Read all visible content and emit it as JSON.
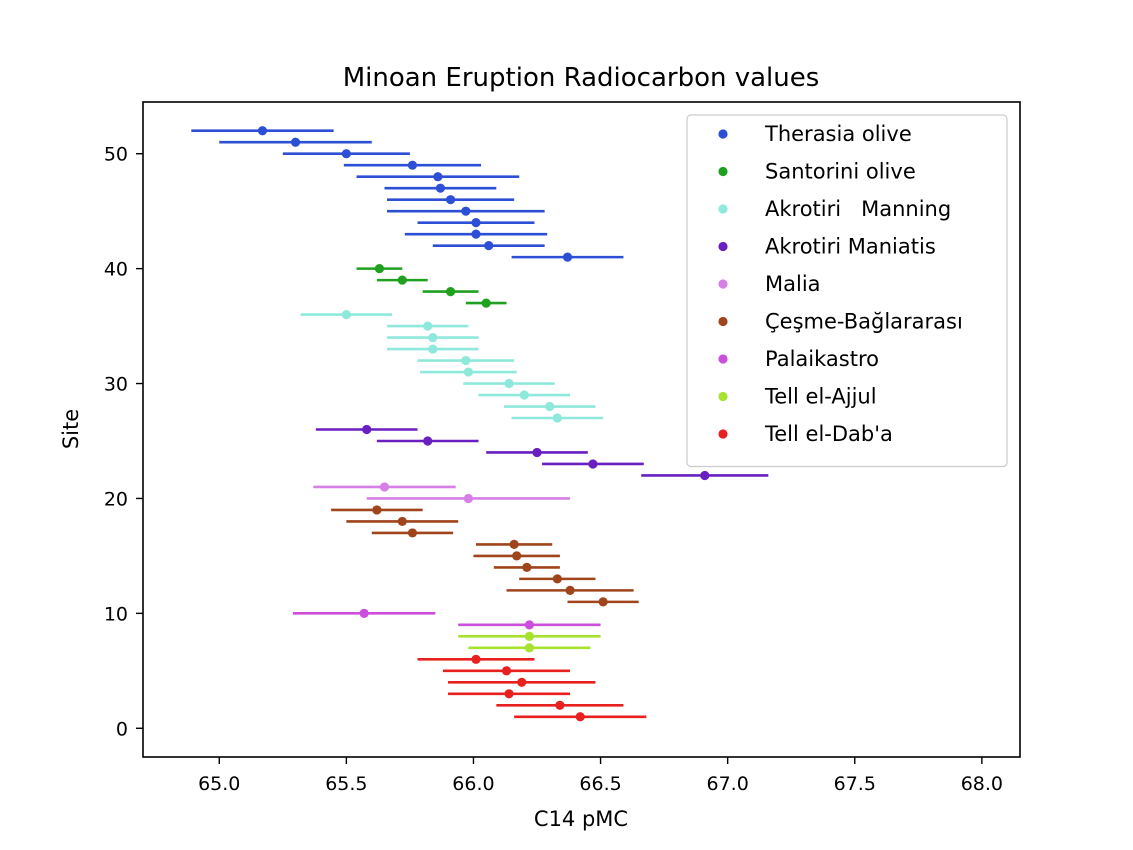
{
  "chart_data": {
    "type": "scatter",
    "title": "Minoan Eruption Radiocarbon values",
    "xlabel": "C14 pMC",
    "ylabel": "Site",
    "xlim": [
      64.7,
      68.15
    ],
    "ylim": [
      -2.5,
      54.5
    ],
    "xticks": [
      65.0,
      65.5,
      66.0,
      66.5,
      67.0,
      67.5,
      68.0
    ],
    "yticks": [
      0,
      10,
      20,
      30,
      40,
      50
    ],
    "xtick_labels": [
      "65.0",
      "65.5",
      "66.0",
      "66.5",
      "67.0",
      "67.5",
      "68.0"
    ],
    "ytick_labels": [
      "0",
      "10",
      "20",
      "30",
      "40",
      "50"
    ],
    "grid": false,
    "legend_position": "top-right",
    "error_bars": "horizontal",
    "series": [
      {
        "name": "Therasia olive",
        "color": "#2d4fd6",
        "points": [
          {
            "x": 65.17,
            "y": 52,
            "err": 0.28
          },
          {
            "x": 65.3,
            "y": 51,
            "err": 0.3
          },
          {
            "x": 65.5,
            "y": 50,
            "err": 0.25
          },
          {
            "x": 65.76,
            "y": 49,
            "err": 0.27
          },
          {
            "x": 65.86,
            "y": 48,
            "err": 0.32
          },
          {
            "x": 65.87,
            "y": 47,
            "err": 0.22
          },
          {
            "x": 65.91,
            "y": 46,
            "err": 0.25
          },
          {
            "x": 65.97,
            "y": 45,
            "err": 0.31
          },
          {
            "x": 66.01,
            "y": 44,
            "err": 0.23
          },
          {
            "x": 66.01,
            "y": 43,
            "err": 0.28
          },
          {
            "x": 66.06,
            "y": 42,
            "err": 0.22
          },
          {
            "x": 66.37,
            "y": 41,
            "err": 0.22
          }
        ]
      },
      {
        "name": "Santorini olive",
        "color": "#1fa01f",
        "points": [
          {
            "x": 65.63,
            "y": 40,
            "err": 0.09
          },
          {
            "x": 65.72,
            "y": 39,
            "err": 0.1
          },
          {
            "x": 65.91,
            "y": 38,
            "err": 0.11
          },
          {
            "x": 66.05,
            "y": 37,
            "err": 0.08
          }
        ]
      },
      {
        "name": "Akrotiri   Manning",
        "color": "#8ee8dc",
        "points": [
          {
            "x": 65.5,
            "y": 36,
            "err": 0.18
          },
          {
            "x": 65.82,
            "y": 35,
            "err": 0.16
          },
          {
            "x": 65.84,
            "y": 34,
            "err": 0.18
          },
          {
            "x": 65.84,
            "y": 33,
            "err": 0.18
          },
          {
            "x": 65.97,
            "y": 32,
            "err": 0.19
          },
          {
            "x": 65.98,
            "y": 31,
            "err": 0.19
          },
          {
            "x": 66.14,
            "y": 30,
            "err": 0.18
          },
          {
            "x": 66.2,
            "y": 29,
            "err": 0.18
          },
          {
            "x": 66.3,
            "y": 28,
            "err": 0.18
          },
          {
            "x": 66.33,
            "y": 27,
            "err": 0.18
          }
        ]
      },
      {
        "name": "Akrotiri Maniatis",
        "color": "#6a1fc0",
        "points": [
          {
            "x": 65.58,
            "y": 26,
            "err": 0.2
          },
          {
            "x": 65.82,
            "y": 25,
            "err": 0.2
          },
          {
            "x": 66.25,
            "y": 24,
            "err": 0.2
          },
          {
            "x": 66.47,
            "y": 23,
            "err": 0.2
          },
          {
            "x": 66.91,
            "y": 22,
            "err": 0.25
          }
        ]
      },
      {
        "name": "Malia",
        "color": "#d77fe6",
        "points": [
          {
            "x": 65.65,
            "y": 21,
            "err": 0.28
          },
          {
            "x": 65.98,
            "y": 20,
            "err": 0.4
          }
        ]
      },
      {
        "name": "Çeşme-Bağlararası",
        "color": "#a0441b",
        "points": [
          {
            "x": 65.62,
            "y": 19,
            "err": 0.18
          },
          {
            "x": 65.72,
            "y": 18,
            "err": 0.22
          },
          {
            "x": 65.76,
            "y": 17,
            "err": 0.16
          },
          {
            "x": 66.16,
            "y": 16,
            "err": 0.15
          },
          {
            "x": 66.17,
            "y": 15,
            "err": 0.17
          },
          {
            "x": 66.21,
            "y": 14,
            "err": 0.13
          },
          {
            "x": 66.33,
            "y": 13,
            "err": 0.15
          },
          {
            "x": 66.38,
            "y": 12,
            "err": 0.25
          },
          {
            "x": 66.51,
            "y": 11,
            "err": 0.14
          }
        ]
      },
      {
        "name": "Palaikastro",
        "color": "#cc4fdc",
        "points": [
          {
            "x": 65.57,
            "y": 10,
            "err": 0.28
          },
          {
            "x": 66.22,
            "y": 9,
            "err": 0.28
          }
        ]
      },
      {
        "name": "Tell el-Ajjul",
        "color": "#a6e22e",
        "points": [
          {
            "x": 66.22,
            "y": 8,
            "err": 0.28
          },
          {
            "x": 66.22,
            "y": 7,
            "err": 0.24
          }
        ]
      },
      {
        "name": "Tell el-Dab'a",
        "color": "#e8201f",
        "points": [
          {
            "x": 66.01,
            "y": 6,
            "err": 0.23
          },
          {
            "x": 66.13,
            "y": 5,
            "err": 0.25
          },
          {
            "x": 66.19,
            "y": 4,
            "err": 0.29
          },
          {
            "x": 66.14,
            "y": 3,
            "err": 0.24
          },
          {
            "x": 66.34,
            "y": 2,
            "err": 0.25
          },
          {
            "x": 66.42,
            "y": 1,
            "err": 0.26
          }
        ]
      }
    ]
  }
}
